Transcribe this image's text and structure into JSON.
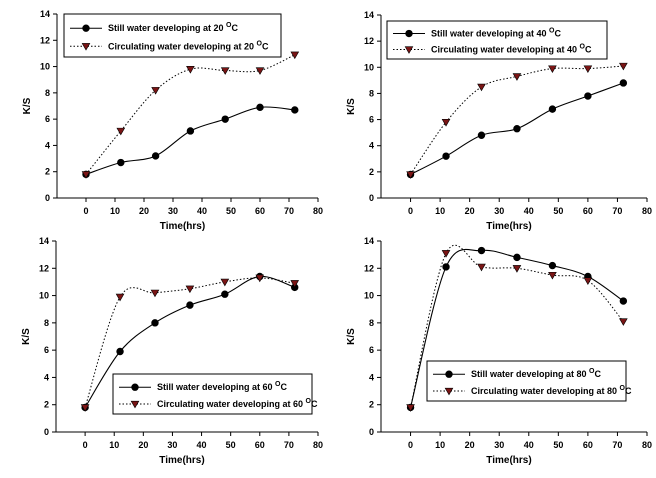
{
  "chart_data": [
    {
      "type": "line",
      "title": "",
      "xlabel": "Time(hrs)",
      "ylabel": "K/S",
      "xlim": [
        -10,
        80
      ],
      "ylim": [
        0,
        14
      ],
      "xticks": [
        "0",
        "10",
        "20",
        "30",
        "40",
        "50",
        "60",
        "70",
        "80"
      ],
      "yticks": [
        "0",
        "2",
        "4",
        "6",
        "8",
        "10",
        "12",
        "14"
      ],
      "legend_position": "top-left",
      "series": [
        {
          "name": "Still water developing at 20",
          "temp_sup": "O",
          "unit": "C",
          "marker": "circle",
          "line": "solid",
          "x": [
            0,
            12,
            24,
            36,
            48,
            60,
            72
          ],
          "values": [
            1.8,
            2.7,
            3.2,
            5.1,
            6.0,
            6.9,
            6.7
          ]
        },
        {
          "name": "Circulating water developing at 20",
          "temp_sup": "O",
          "unit": "C",
          "marker": "triangle-down",
          "line": "dotted",
          "x": [
            0,
            12,
            24,
            36,
            48,
            60,
            72
          ],
          "values": [
            1.8,
            5.1,
            8.2,
            9.8,
            9.7,
            9.7,
            10.9
          ]
        }
      ]
    },
    {
      "type": "line",
      "title": "",
      "xlabel": "Time(hrs)",
      "ylabel": "K/S",
      "xlim": [
        -10,
        80
      ],
      "ylim": [
        0,
        14
      ],
      "xticks": [
        "0",
        "10",
        "20",
        "30",
        "40",
        "50",
        "60",
        "70",
        "80"
      ],
      "yticks": [
        "0",
        "2",
        "4",
        "6",
        "8",
        "10",
        "12",
        "14"
      ],
      "legend_position": "top-left",
      "series": [
        {
          "name": "Still water developing at 40",
          "temp_sup": "O",
          "unit": "C",
          "marker": "circle",
          "line": "solid",
          "x": [
            0,
            12,
            24,
            36,
            48,
            60,
            72
          ],
          "values": [
            1.8,
            3.2,
            4.8,
            5.3,
            6.8,
            7.8,
            8.8
          ]
        },
        {
          "name": "Circulating water developing at 40",
          "temp_sup": "O",
          "unit": "C",
          "marker": "triangle-down",
          "line": "dotted",
          "x": [
            0,
            12,
            24,
            36,
            48,
            60,
            72
          ],
          "values": [
            1.8,
            5.8,
            8.5,
            9.3,
            9.9,
            9.9,
            10.1
          ]
        }
      ]
    },
    {
      "type": "line",
      "title": "",
      "xlabel": "Time(hrs)",
      "ylabel": "K/S",
      "xlim": [
        -10,
        80
      ],
      "ylim": [
        0,
        14
      ],
      "xticks": [
        "0",
        "10",
        "20",
        "30",
        "40",
        "50",
        "60",
        "70",
        "80"
      ],
      "yticks": [
        "0",
        "2",
        "4",
        "6",
        "8",
        "10",
        "12",
        "14"
      ],
      "legend_position": "bottom-right",
      "series": [
        {
          "name": "Still water developing at 60",
          "temp_sup": "O",
          "unit": "C",
          "marker": "circle",
          "line": "solid",
          "x": [
            0,
            12,
            24,
            36,
            48,
            60,
            72
          ],
          "values": [
            1.8,
            5.9,
            8.0,
            9.3,
            10.1,
            11.4,
            10.6
          ]
        },
        {
          "name": "Circulating water developing at 60",
          "temp_sup": "O",
          "unit": "C",
          "marker": "triangle-down",
          "line": "dotted",
          "x": [
            0,
            12,
            24,
            36,
            48,
            60,
            72
          ],
          "values": [
            1.8,
            9.9,
            10.2,
            10.5,
            11.0,
            11.3,
            10.9
          ]
        }
      ]
    },
    {
      "type": "line",
      "title": "",
      "xlabel": "Time(hrs)",
      "ylabel": "K/S",
      "xlim": [
        -10,
        80
      ],
      "ylim": [
        0,
        14
      ],
      "xticks": [
        "0",
        "10",
        "20",
        "30",
        "40",
        "50",
        "60",
        "70",
        "80"
      ],
      "yticks": [
        "0",
        "2",
        "4",
        "6",
        "8",
        "10",
        "12",
        "14"
      ],
      "legend_position": "bottom-right",
      "series": [
        {
          "name": "Still water developing at 80",
          "temp_sup": "O",
          "unit": "C",
          "marker": "circle",
          "line": "solid",
          "x": [
            0,
            12,
            24,
            36,
            48,
            60,
            72
          ],
          "values": [
            1.8,
            12.1,
            13.3,
            12.8,
            12.2,
            11.4,
            9.6
          ]
        },
        {
          "name": "Circulating water developing at 80",
          "temp_sup": "O",
          "unit": "C",
          "marker": "triangle-down",
          "line": "dotted",
          "x": [
            0,
            12,
            24,
            36,
            48,
            60,
            72
          ],
          "values": [
            1.8,
            13.1,
            12.1,
            12.0,
            11.5,
            11.1,
            8.1
          ]
        }
      ]
    }
  ]
}
